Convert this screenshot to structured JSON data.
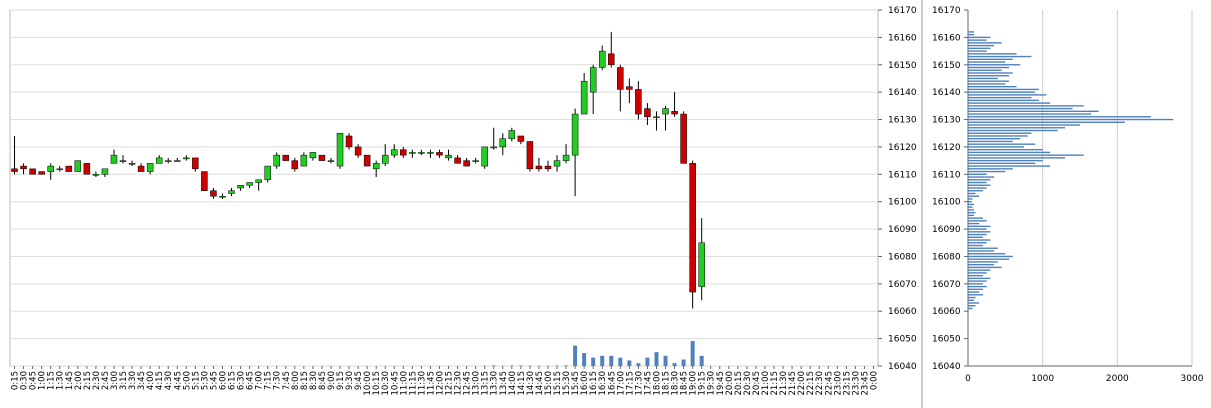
{
  "chart_data": [
    {
      "type": "candlestick",
      "categories": [
        "0:15",
        "0:30",
        "0:45",
        "1:00",
        "1:15",
        "1:30",
        "1:45",
        "2:00",
        "2:15",
        "2:30",
        "2:45",
        "3:00",
        "3:15",
        "3:30",
        "3:45",
        "4:00",
        "4:15",
        "4:30",
        "4:45",
        "5:00",
        "5:15",
        "5:30",
        "5:45",
        "6:00",
        "6:15",
        "6:30",
        "6:45",
        "7:00",
        "7:15",
        "7:30",
        "7:45",
        "8:00",
        "8:15",
        "8:30",
        "8:45",
        "9:00",
        "9:15",
        "9:30",
        "9:45",
        "10:00",
        "10:15",
        "10:30",
        "10:45",
        "11:00",
        "11:15",
        "11:30",
        "11:45",
        "12:00",
        "12:15",
        "12:30",
        "12:45",
        "13:00",
        "13:15",
        "13:30",
        "13:45",
        "14:00",
        "14:15",
        "14:30",
        "14:45",
        "15:00",
        "15:15",
        "15:30",
        "15:45",
        "16:00",
        "16:15",
        "16:30",
        "16:45",
        "17:00",
        "17:15",
        "17:30",
        "17:45",
        "18:00",
        "18:15",
        "18:30",
        "18:45",
        "19:00",
        "19:15",
        "19:30",
        "19:45",
        "20:00",
        "20:15",
        "20:30",
        "20:45",
        "21:00",
        "21:15",
        "21:30",
        "21:45",
        "22:00",
        "22:15",
        "22:30",
        "22:45",
        "23:00",
        "23:15",
        "23:30",
        "23:45",
        "0:00"
      ],
      "open": [
        16112,
        16113,
        16112,
        16111,
        16111,
        16112,
        16113,
        16111,
        16114,
        16110,
        16110,
        16114,
        16115,
        16114,
        16113,
        16111,
        16114,
        16115,
        16115,
        16116,
        16116,
        16111,
        16104,
        16102,
        16103,
        16105,
        16106,
        16107,
        16108,
        16113,
        16117,
        16115,
        16113,
        16116,
        16117,
        16115,
        16113,
        16124,
        16120,
        16117,
        16112,
        16114,
        16117,
        16119,
        16118,
        16118,
        16118,
        16118,
        16116,
        16116,
        16115,
        16115,
        16113,
        16120,
        16120,
        16123,
        16124,
        16122,
        16113,
        16113,
        16113,
        16115,
        16117,
        16132,
        16140,
        16149,
        16154,
        16149,
        16142,
        16141,
        16134,
        16131,
        16132,
        16133,
        16132,
        16114,
        16069,
        null,
        null,
        null,
        null,
        null,
        null,
        null,
        null,
        null,
        null,
        null,
        null,
        null,
        null,
        null,
        null,
        null,
        null,
        null
      ],
      "high": [
        16124,
        16114,
        16112,
        16111,
        16114,
        16113,
        16113,
        16115,
        16114,
        16111,
        16112,
        16119,
        16117,
        16115,
        16114,
        16114,
        16117,
        16116,
        16116,
        16117,
        16116,
        16111,
        16105,
        16103,
        16105,
        16106,
        16107,
        16108,
        16113,
        16118,
        16117,
        16116,
        16118,
        16118,
        16117,
        16116,
        16125,
        16125,
        16121,
        16117,
        16115,
        16121,
        16121,
        16120,
        16119,
        16119,
        16119,
        16119,
        16119,
        16117,
        16116,
        16116,
        16120,
        16127,
        16125,
        16127,
        16124,
        16122,
        16116,
        16115,
        16117,
        16121,
        16134,
        16147,
        16150,
        16157,
        16162,
        16150,
        16145,
        16144,
        16136,
        16133,
        16135,
        16140,
        16133,
        16115,
        16094,
        null,
        null,
        null,
        null,
        null,
        null,
        null,
        null,
        null,
        null,
        null,
        null,
        null,
        null,
        null,
        null,
        null,
        null,
        null
      ],
      "low": [
        16110,
        16110,
        16110,
        16110,
        16108,
        16111,
        16111,
        16111,
        16110,
        16109,
        16109,
        16114,
        16114,
        16113,
        16111,
        16110,
        16114,
        16114,
        16115,
        16115,
        16111,
        16104,
        16101,
        16101,
        16102,
        16104,
        16105,
        16104,
        16107,
        16112,
        16115,
        16111,
        16113,
        16115,
        16115,
        16114,
        16112,
        16119,
        16116,
        16113,
        16109,
        16113,
        16116,
        16116,
        16116,
        16117,
        16116,
        16116,
        16115,
        16114,
        16113,
        16114,
        16112,
        16119,
        16117,
        16122,
        16121,
        16111,
        16111,
        16111,
        16111,
        16114,
        16102,
        16132,
        16132,
        16148,
        16149,
        16133,
        16136,
        16130,
        16128,
        16126,
        16126,
        16131,
        16114,
        16061,
        16064,
        null,
        null,
        null,
        null,
        null,
        null,
        null,
        null,
        null,
        null,
        null,
        null,
        null,
        null,
        null,
        null,
        null,
        null,
        null
      ],
      "close": [
        16111,
        16112,
        16110,
        16110,
        16113,
        16112,
        16111,
        16115,
        16110,
        16110,
        16112,
        16117,
        16115,
        16114,
        16111,
        16114,
        16116,
        16115,
        16115,
        16116,
        16112,
        16104,
        16102,
        16102,
        16104,
        16106,
        16107,
        16108,
        16113,
        16117,
        16115,
        16112,
        16117,
        16118,
        16115,
        16115,
        16125,
        16120,
        16117,
        16113,
        16114,
        16117,
        16119,
        16117,
        16118,
        16118,
        16118,
        16117,
        16117,
        16114,
        16113,
        16115,
        16120,
        16120,
        16123,
        16126,
        16122,
        16112,
        16112,
        16112,
        16115,
        16117,
        16132,
        16144,
        16149,
        16155,
        16150,
        16141,
        16141,
        16132,
        16131,
        16131,
        16134,
        16132,
        16114,
        16067,
        16085,
        null,
        null,
        null,
        null,
        null,
        null,
        null,
        null,
        null,
        null,
        null,
        null,
        null,
        null,
        null,
        null,
        null,
        null,
        null
      ],
      "volume": [
        0,
        0,
        0,
        0,
        0,
        0,
        0,
        0,
        0,
        0,
        0,
        0,
        0,
        0,
        0,
        0,
        0,
        0,
        0,
        0,
        0,
        0,
        0,
        0,
        0,
        0,
        0,
        0,
        0,
        0,
        0,
        0,
        0,
        0,
        0,
        0,
        0,
        0,
        0,
        0,
        0,
        0,
        0,
        0,
        0,
        0,
        0,
        0,
        0,
        0,
        0,
        0,
        30,
        60,
        20,
        40,
        50,
        30,
        20,
        20,
        40,
        60,
        2200,
        1400,
        900,
        1100,
        1100,
        900,
        600,
        300,
        900,
        1500,
        1100,
        300,
        700,
        2700,
        1100,
        null,
        null,
        null,
        null,
        null,
        null,
        null,
        null,
        null,
        null,
        null,
        null,
        null,
        null,
        null,
        null,
        null,
        null,
        null
      ],
      "up_color": "#22cc22",
      "down_color": "#cc0000",
      "volume_color": "#4f81bd",
      "ylim": [
        16040,
        16170
      ],
      "yticks": [
        16040,
        16050,
        16060,
        16070,
        16080,
        16090,
        16100,
        16110,
        16120,
        16130,
        16140,
        16150,
        16160,
        16170
      ],
      "grid": true
    },
    {
      "type": "bar",
      "orientation": "horizontal",
      "color": "#4f81bd",
      "y": [
        16162,
        16161,
        16160,
        16159,
        16158,
        16157,
        16156,
        16155,
        16154,
        16153,
        16152,
        16151,
        16150,
        16149,
        16148,
        16147,
        16146,
        16145,
        16144,
        16143,
        16142,
        16141,
        16140,
        16139,
        16138,
        16137,
        16136,
        16135,
        16134,
        16133,
        16132,
        16131,
        16130,
        16129,
        16128,
        16127,
        16126,
        16125,
        16124,
        16123,
        16122,
        16121,
        16120,
        16119,
        16118,
        16117,
        16116,
        16115,
        16114,
        16113,
        16112,
        16111,
        16110,
        16109,
        16108,
        16107,
        16106,
        16105,
        16104,
        16103,
        16102,
        16101,
        16100,
        16099,
        16098,
        16097,
        16096,
        16095,
        16094,
        16093,
        16092,
        16091,
        16090,
        16089,
        16088,
        16087,
        16086,
        16085,
        16084,
        16083,
        16082,
        16081,
        16080,
        16079,
        16078,
        16077,
        16076,
        16075,
        16074,
        16073,
        16072,
        16071,
        16070,
        16069,
        16068,
        16067,
        16066,
        16065,
        16064,
        16063,
        16062,
        16061
      ],
      "values": [
        80,
        80,
        300,
        250,
        450,
        350,
        300,
        250,
        650,
        850,
        600,
        500,
        700,
        550,
        450,
        600,
        550,
        400,
        550,
        500,
        650,
        950,
        900,
        1050,
        850,
        950,
        1100,
        1550,
        1400,
        1750,
        1650,
        2450,
        2750,
        2100,
        1500,
        1300,
        1200,
        850,
        800,
        700,
        600,
        900,
        750,
        1000,
        1100,
        1550,
        1300,
        1000,
        900,
        1100,
        600,
        500,
        250,
        350,
        300,
        250,
        300,
        250,
        200,
        100,
        150,
        60,
        50,
        80,
        60,
        80,
        100,
        80,
        200,
        250,
        150,
        300,
        250,
        300,
        250,
        200,
        300,
        250,
        200,
        400,
        350,
        500,
        600,
        550,
        400,
        350,
        450,
        300,
        250,
        200,
        300,
        250,
        200,
        250,
        200,
        150,
        200,
        100,
        80,
        150,
        100,
        60
      ],
      "xlim": [
        0,
        3000
      ],
      "xticks": [
        0,
        1000,
        2000,
        3000
      ],
      "ylim": [
        16040,
        16170
      ],
      "yticks": [
        16040,
        16050,
        16060,
        16070,
        16080,
        16090,
        16100,
        16110,
        16120,
        16130,
        16140,
        16150,
        16160,
        16170
      ],
      "grid": true
    }
  ]
}
